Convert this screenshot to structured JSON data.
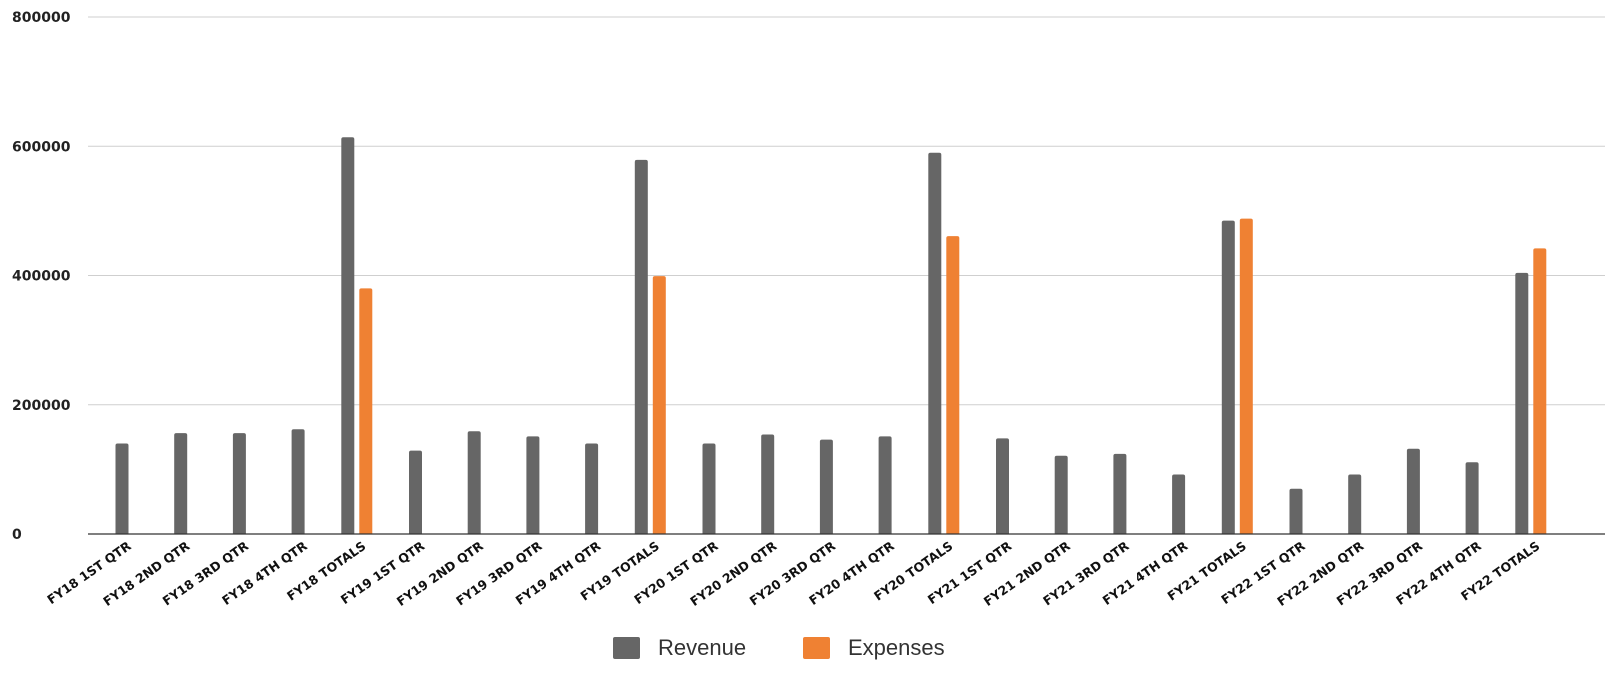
{
  "chart_data": {
    "type": "bar",
    "categories": [
      "FY18 1ST QTR",
      "FY18 2ND QTR",
      "FY18 3RD QTR",
      "FY18 4TH QTR",
      "FY18 TOTALS",
      "FY19 1ST QTR",
      "FY19 2ND QTR",
      "FY19 3RD QTR",
      "FY19 4TH QTR",
      "FY19 TOTALS",
      "FY20 1ST QTR",
      "FY20 2ND QTR",
      "FY20 3RD QTR",
      "FY20 4TH QTR",
      "FY20 TOTALS",
      "FY21 1ST QTR",
      "FY21 2ND QTR",
      "FY21 3RD QTR",
      "FY21 4TH QTR",
      "FY21 TOTALS",
      "FY22 1ST QTR",
      "FY22 2ND QTR",
      "FY22 3RD QTR",
      "FY22 4TH QTR",
      "FY22 TOTALS"
    ],
    "series": [
      {
        "name": "Revenue",
        "color": "#666666",
        "values": [
          140000,
          156000,
          156000,
          162000,
          614000,
          129000,
          159000,
          151000,
          140000,
          579000,
          140000,
          154000,
          146000,
          151000,
          590000,
          148000,
          121000,
          124000,
          92000,
          485000,
          70000,
          92000,
          132000,
          111000,
          404000
        ]
      },
      {
        "name": "Expenses",
        "color": "#ef8133",
        "values": [
          null,
          null,
          null,
          null,
          380000,
          null,
          null,
          null,
          null,
          399000,
          null,
          null,
          null,
          null,
          461000,
          null,
          null,
          null,
          null,
          488000,
          null,
          null,
          null,
          null,
          442000
        ]
      }
    ],
    "yticks": [
      "0",
      "200000",
      "400000",
      "600000",
      "800000"
    ],
    "ylim": [
      0,
      800000
    ],
    "grid": true,
    "legend_position": "bottom-center"
  }
}
